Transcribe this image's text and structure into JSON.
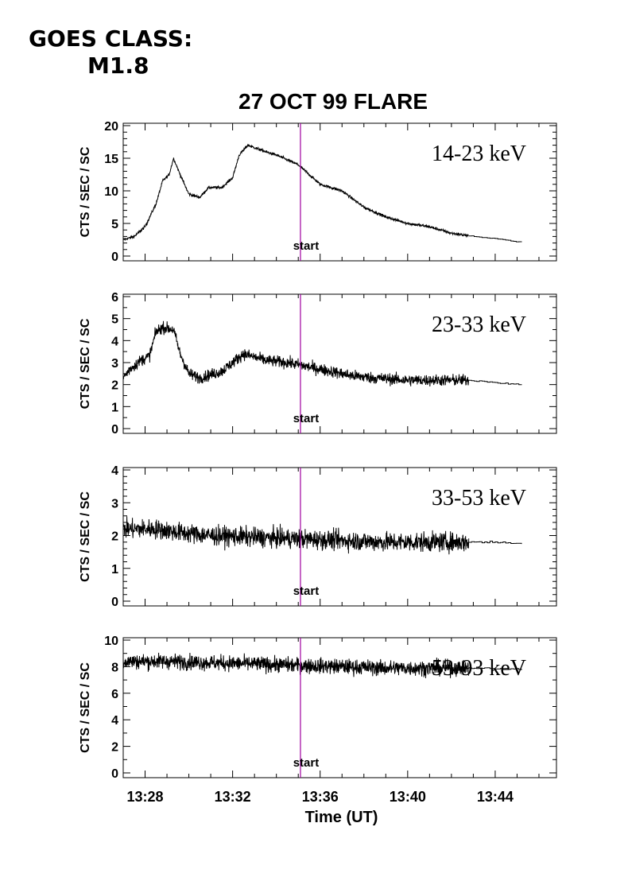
{
  "header": {
    "goes_line1": "GOES CLASS:",
    "goes_line2": "M1.8",
    "title": "27 OCT 99 FLARE"
  },
  "chart_data": {
    "type": "line",
    "title": "27 OCT 99 FLARE",
    "xlabel": "Time (UT)",
    "ylabel": "CTS / SEC / SC",
    "x_ticks": [
      "13:28",
      "13:32",
      "13:36",
      "13:40",
      "13:44"
    ],
    "x_range_min": [
      27.0,
      46.8
    ],
    "marker": {
      "label": "start",
      "time_min": 35.1,
      "color": "#a000a0"
    },
    "coarse_after_min": 42.8,
    "panels": [
      {
        "band": "14-23 keV",
        "ylim": [
          0,
          20
        ],
        "y_ticks": [
          "0",
          "5",
          "10",
          "15",
          "20"
        ],
        "noise": 0.35,
        "points": [
          [
            27.0,
            2.5
          ],
          [
            27.5,
            3.0
          ],
          [
            28.0,
            4.5
          ],
          [
            28.5,
            8.0
          ],
          [
            28.8,
            11.5
          ],
          [
            29.1,
            12.5
          ],
          [
            29.3,
            15.0
          ],
          [
            29.6,
            12.5
          ],
          [
            30.0,
            9.5
          ],
          [
            30.5,
            9.0
          ],
          [
            30.9,
            10.5
          ],
          [
            31.5,
            10.5
          ],
          [
            32.0,
            12.0
          ],
          [
            32.3,
            15.5
          ],
          [
            32.7,
            17.0
          ],
          [
            33.5,
            16.0
          ],
          [
            34.0,
            15.5
          ],
          [
            35.0,
            14.0
          ],
          [
            36.0,
            11.0
          ],
          [
            37.0,
            10.0
          ],
          [
            38.0,
            7.5
          ],
          [
            39.0,
            6.0
          ],
          [
            40.0,
            5.0
          ],
          [
            41.0,
            4.5
          ],
          [
            42.0,
            3.5
          ],
          [
            43.0,
            3.0
          ],
          [
            44.0,
            2.7
          ],
          [
            45.2,
            2.1
          ]
        ]
      },
      {
        "band": "23-33 keV",
        "ylim": [
          0,
          6
        ],
        "y_ticks": [
          "0",
          "1",
          "2",
          "3",
          "4",
          "5",
          "6"
        ],
        "noise": 0.25,
        "points": [
          [
            27.0,
            2.3
          ],
          [
            27.3,
            2.7
          ],
          [
            27.8,
            3.1
          ],
          [
            28.2,
            3.3
          ],
          [
            28.5,
            4.4
          ],
          [
            28.8,
            4.6
          ],
          [
            29.3,
            4.5
          ],
          [
            29.6,
            3.4
          ],
          [
            30.0,
            2.5
          ],
          [
            30.5,
            2.3
          ],
          [
            31.5,
            2.6
          ],
          [
            32.5,
            3.4
          ],
          [
            33.5,
            3.1
          ],
          [
            34.5,
            3.0
          ],
          [
            35.5,
            2.8
          ],
          [
            36.5,
            2.6
          ],
          [
            37.5,
            2.4
          ],
          [
            38.5,
            2.3
          ],
          [
            40.0,
            2.2
          ],
          [
            41.5,
            2.2
          ],
          [
            42.8,
            2.2
          ],
          [
            44.0,
            2.1
          ],
          [
            45.2,
            2.0
          ]
        ]
      },
      {
        "band": "33-53 keV",
        "ylim": [
          0,
          4
        ],
        "y_ticks": [
          "0",
          "1",
          "2",
          "3",
          "4"
        ],
        "noise": 0.28,
        "points": [
          [
            27.0,
            2.2
          ],
          [
            28.5,
            2.2
          ],
          [
            29.5,
            2.1
          ],
          [
            31.0,
            2.0
          ],
          [
            33.0,
            1.95
          ],
          [
            35.0,
            1.9
          ],
          [
            37.0,
            1.85
          ],
          [
            39.0,
            1.8
          ],
          [
            41.0,
            1.8
          ],
          [
            42.8,
            1.8
          ],
          [
            44.0,
            1.8
          ],
          [
            45.2,
            1.75
          ]
        ]
      },
      {
        "band": "53-93 keV",
        "ylim": [
          0,
          10
        ],
        "y_ticks": [
          "0",
          "2",
          "4",
          "6",
          "8",
          "10"
        ],
        "noise": 0.55,
        "points": [
          [
            27.0,
            8.4
          ],
          [
            29.0,
            8.4
          ],
          [
            31.0,
            8.3
          ],
          [
            33.0,
            8.2
          ],
          [
            35.0,
            8.1
          ],
          [
            37.0,
            8.0
          ],
          [
            39.0,
            7.9
          ],
          [
            41.0,
            7.9
          ],
          [
            42.8,
            7.9
          ],
          [
            44.0,
            7.85
          ],
          [
            45.2,
            7.8
          ]
        ]
      }
    ]
  }
}
